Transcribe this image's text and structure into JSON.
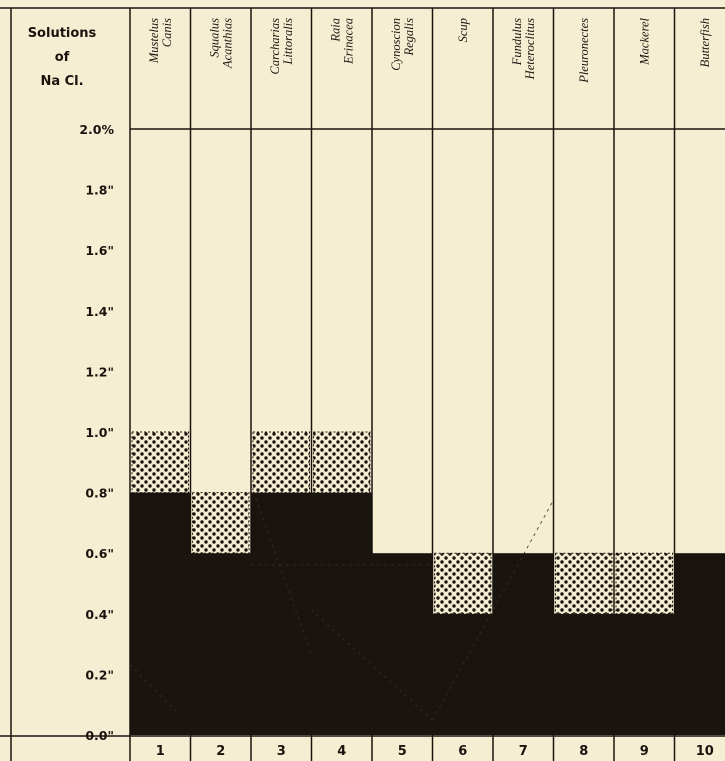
{
  "header": {
    "solutions_line1": "Solutions",
    "solutions_line2": "of",
    "solutions_line3": "Na Cl."
  },
  "chart_data": {
    "type": "bar",
    "ylim": [
      0,
      2.0
    ],
    "y_ticks": [
      {
        "value": 2.0,
        "label": "2.0%"
      },
      {
        "value": 1.8,
        "label": "1.8\""
      },
      {
        "value": 1.6,
        "label": "1.6\""
      },
      {
        "value": 1.4,
        "label": "1.4\""
      },
      {
        "value": 1.2,
        "label": "1.2\""
      },
      {
        "value": 1.0,
        "label": "1.0\""
      },
      {
        "value": 0.8,
        "label": "0.8\""
      },
      {
        "value": 0.6,
        "label": "0.6\""
      },
      {
        "value": 0.4,
        "label": "0.4\""
      },
      {
        "value": 0.2,
        "label": "0.2\""
      },
      {
        "value": 0.0,
        "label": "0.0\""
      }
    ],
    "columns": [
      {
        "number": "1",
        "species": [
          "Mustelus",
          "Canis"
        ],
        "solid_to": 0.8,
        "dotted_to": 1.0
      },
      {
        "number": "2",
        "species": [
          "Squalus",
          "Acanthias"
        ],
        "solid_to": 0.6,
        "dotted_to": 0.8
      },
      {
        "number": "3",
        "species": [
          "Carcharias",
          "Littoralis"
        ],
        "solid_to": 0.8,
        "dotted_to": 1.0
      },
      {
        "number": "4",
        "species": [
          "Raia",
          "Erinacea"
        ],
        "solid_to": 0.8,
        "dotted_to": 1.0
      },
      {
        "number": "5",
        "species": [
          "Cynoscion",
          "Regalis"
        ],
        "solid_to": 0.6,
        "dotted_to": 0.6
      },
      {
        "number": "6",
        "species": [
          "Scup"
        ],
        "solid_to": 0.4,
        "dotted_to": 0.6
      },
      {
        "number": "7",
        "species": [
          "Fundulus",
          "Heteroclitus"
        ],
        "solid_to": 0.6,
        "dotted_to": 0.6
      },
      {
        "number": "8",
        "species": [
          "Pleuronectes"
        ],
        "solid_to": 0.4,
        "dotted_to": 0.6
      },
      {
        "number": "9",
        "species": [
          "Mackerel"
        ],
        "solid_to": 0.4,
        "dotted_to": 0.6
      },
      {
        "number": "10",
        "species": [
          "Butterfish"
        ],
        "solid_to": 0.6,
        "dotted_to": 0.6
      }
    ],
    "colors": {
      "background": "#f6eed3",
      "solid": "#1a140e",
      "dots": "#1a140e",
      "lines": "#1a140e"
    }
  }
}
